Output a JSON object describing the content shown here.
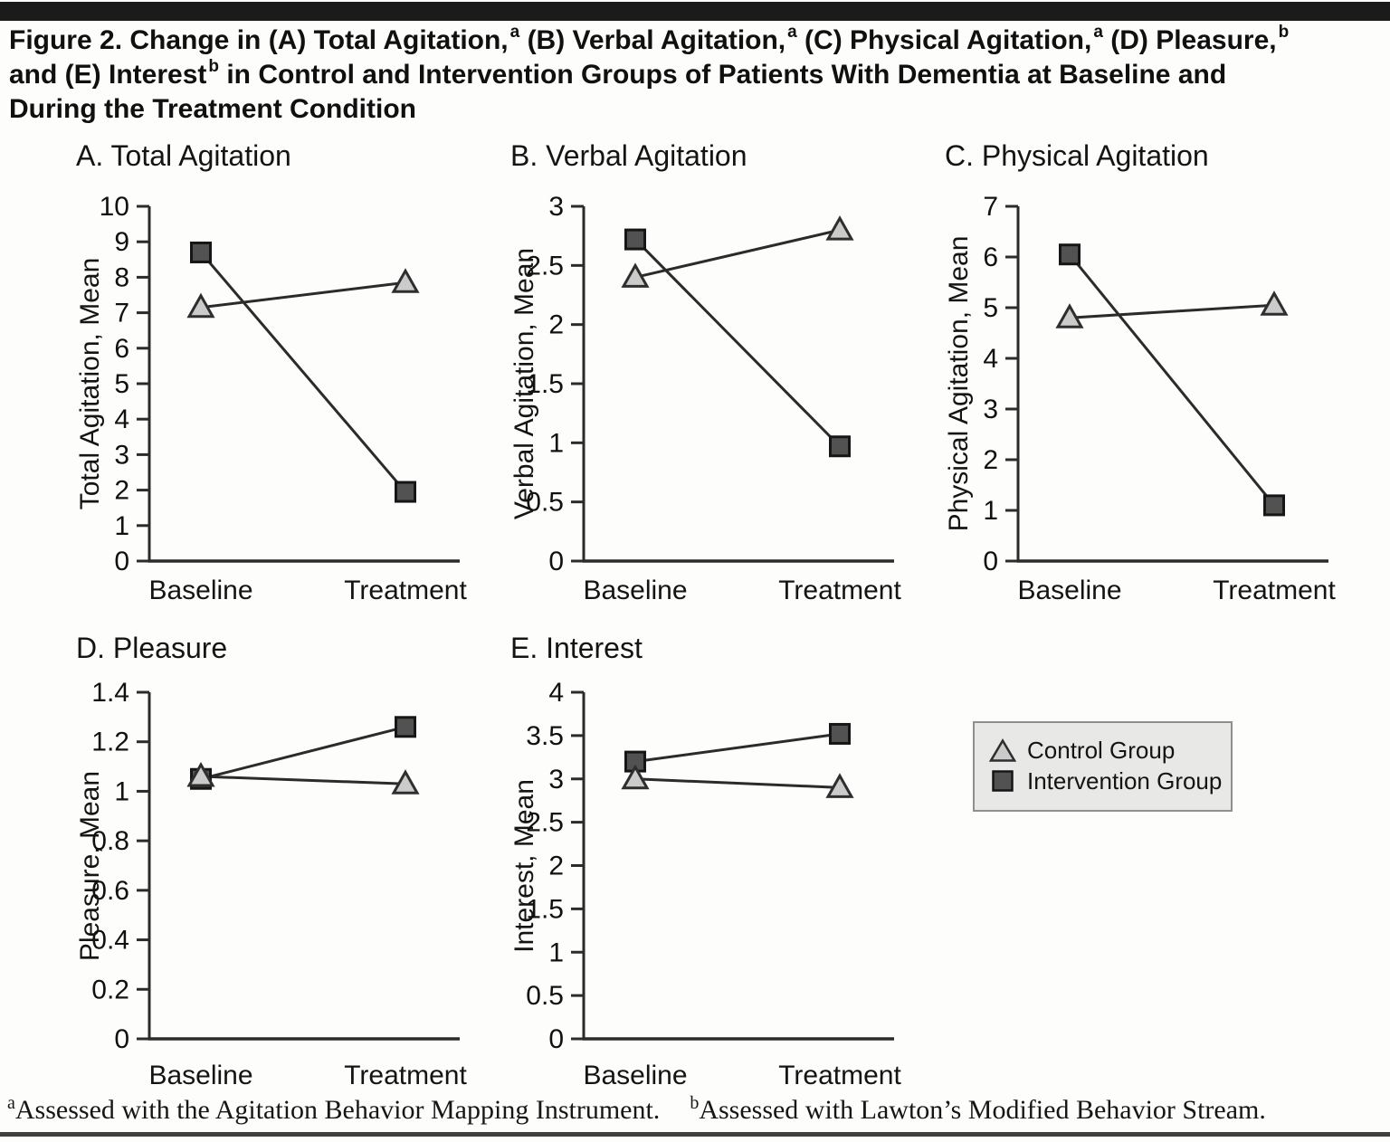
{
  "colors": {
    "control_fill": "#cbcbcb",
    "control_stroke": "#2e2e2e",
    "intervention_fill": "#525252",
    "intervention_stroke": "#161616",
    "line": "#2b2b2b",
    "axis": "#2b2b2b",
    "text": "#111111",
    "legend_bg": "#e8e8e6",
    "legend_border": "#8f8f8f",
    "rule": "#1b1b1b"
  },
  "header": {
    "title_lines": [
      {
        "segments": [
          {
            "t": "Figure 2. Change in (A) Total Agitation,"
          },
          {
            "s": "a"
          },
          {
            "t": " (B) Verbal Agitation,"
          },
          {
            "s": "a"
          },
          {
            "t": " (C) Physical Agitation,"
          },
          {
            "s": "a"
          },
          {
            "t": " (D) Pleasure,"
          },
          {
            "s": "b"
          }
        ]
      },
      {
        "segments": [
          {
            "t": "and (E) Interest"
          },
          {
            "s": "b"
          },
          {
            "t": " in Control and Intervention Groups of Patients With Dementia at Baseline and"
          }
        ]
      },
      {
        "segments": [
          {
            "t": "During the Treatment Condition"
          }
        ]
      }
    ]
  },
  "legend": {
    "items": [
      {
        "marker": "triangle",
        "label": "Control Group"
      },
      {
        "marker": "square",
        "label": "Intervention Group"
      }
    ]
  },
  "footnotes": [
    {
      "sup": "a",
      "text": "Assessed with the Agitation Behavior Mapping Instrument."
    },
    {
      "sup": "b",
      "text": "Assessed with Lawton’s Modified Behavior Stream."
    }
  ],
  "chart_data": [
    {
      "type": "line",
      "panel_title": "A. Total Agitation",
      "ylabel": "Total Agitation, Mean",
      "xlabel": "",
      "categories": [
        "Baseline",
        "Treatment"
      ],
      "ylim": [
        0,
        10
      ],
      "yticks": [
        0,
        1,
        2,
        3,
        4,
        5,
        6,
        7,
        8,
        9,
        10
      ],
      "ytick_labels": [
        "0",
        "1",
        "2",
        "3",
        "4",
        "5",
        "6",
        "7",
        "8",
        "9",
        "10"
      ],
      "grid": false,
      "series": [
        {
          "name": "Control Group",
          "marker": "triangle",
          "values": [
            7.15,
            7.85
          ]
        },
        {
          "name": "Intervention Group",
          "marker": "square",
          "values": [
            8.7,
            1.95
          ]
        }
      ]
    },
    {
      "type": "line",
      "panel_title": "B. Verbal Agitation",
      "ylabel": "Verbal Agitation, Mean",
      "xlabel": "",
      "categories": [
        "Baseline",
        "Treatment"
      ],
      "ylim": [
        0,
        3
      ],
      "yticks": [
        0,
        0.5,
        1,
        1.5,
        2,
        2.5,
        3
      ],
      "ytick_labels": [
        "0",
        "0.5",
        "1",
        "1.5",
        "2",
        "2.5",
        "3"
      ],
      "grid": false,
      "series": [
        {
          "name": "Control Group",
          "marker": "triangle",
          "values": [
            2.4,
            2.8
          ]
        },
        {
          "name": "Intervention Group",
          "marker": "square",
          "values": [
            2.72,
            0.97
          ]
        }
      ]
    },
    {
      "type": "line",
      "panel_title": "C. Physical Agitation",
      "ylabel": "Physical Agitation, Mean",
      "xlabel": "",
      "categories": [
        "Baseline",
        "Treatment"
      ],
      "ylim": [
        0,
        7
      ],
      "yticks": [
        0,
        1,
        2,
        3,
        4,
        5,
        6,
        7
      ],
      "ytick_labels": [
        "0",
        "1",
        "2",
        "3",
        "4",
        "5",
        "6",
        "7"
      ],
      "grid": false,
      "series": [
        {
          "name": "Control Group",
          "marker": "triangle",
          "values": [
            4.8,
            5.05
          ]
        },
        {
          "name": "Intervention Group",
          "marker": "square",
          "values": [
            6.05,
            1.1
          ]
        }
      ]
    },
    {
      "type": "line",
      "panel_title": "D. Pleasure",
      "ylabel": "Pleasure, Mean",
      "xlabel": "",
      "categories": [
        "Baseline",
        "Treatment"
      ],
      "ylim": [
        0,
        1.4
      ],
      "yticks": [
        0,
        0.2,
        0.4,
        0.6,
        0.8,
        1,
        1.2,
        1.4
      ],
      "ytick_labels": [
        "0",
        "0.2",
        "0.4",
        "0.6",
        "0.8",
        "1",
        "1.2",
        "1.4"
      ],
      "grid": false,
      "series": [
        {
          "name": "Control Group",
          "marker": "triangle",
          "values": [
            1.06,
            1.03
          ]
        },
        {
          "name": "Intervention Group",
          "marker": "square",
          "values": [
            1.05,
            1.26
          ]
        }
      ]
    },
    {
      "type": "line",
      "panel_title": "E. Interest",
      "ylabel": "Interest, Mean",
      "xlabel": "",
      "categories": [
        "Baseline",
        "Treatment"
      ],
      "ylim": [
        0,
        4
      ],
      "yticks": [
        0,
        0.5,
        1,
        1.5,
        2,
        2.5,
        3,
        3.5,
        4
      ],
      "ytick_labels": [
        "0",
        "0.5",
        "1",
        "1.5",
        "2",
        "2.5",
        "3",
        "3.5",
        "4"
      ],
      "grid": false,
      "series": [
        {
          "name": "Control Group",
          "marker": "triangle",
          "values": [
            3.0,
            2.9
          ]
        },
        {
          "name": "Intervention Group",
          "marker": "square",
          "values": [
            3.2,
            3.52
          ]
        }
      ]
    }
  ]
}
